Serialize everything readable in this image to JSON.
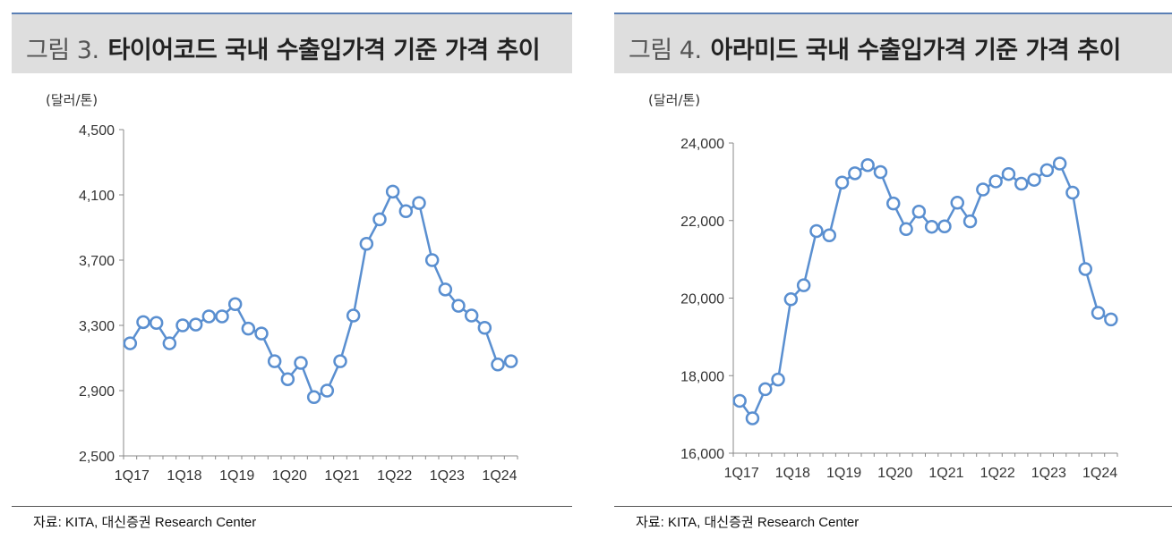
{
  "source_text": "자료: KITA, 대신증권 Research Center",
  "chart_data": [
    {
      "type": "line",
      "figure_label": "그림 3.",
      "title": "타이어코드 국내 수출입가격 기준 가격 추이",
      "unit_label": "(달러/톤)",
      "categories": [
        "1Q17",
        "2Q17",
        "3Q17",
        "4Q17",
        "1Q18",
        "2Q18",
        "3Q18",
        "4Q18",
        "1Q19",
        "2Q19",
        "3Q19",
        "4Q19",
        "1Q20",
        "2Q20",
        "3Q20",
        "4Q20",
        "1Q21",
        "2Q21",
        "3Q21",
        "4Q21",
        "1Q22",
        "2Q22",
        "3Q22",
        "4Q22",
        "1Q23",
        "2Q23",
        "3Q23",
        "4Q23",
        "1Q24",
        "2Q24"
      ],
      "x_tick_labels": [
        "1Q17",
        "1Q18",
        "1Q19",
        "1Q20",
        "1Q21",
        "1Q22",
        "1Q23",
        "1Q24"
      ],
      "series": [
        {
          "values": [
            3190,
            3320,
            3315,
            3190,
            3300,
            3305,
            3355,
            3355,
            3430,
            3280,
            3250,
            3080,
            2970,
            3070,
            2860,
            2900,
            3080,
            3360,
            3800,
            3950,
            4120,
            4000,
            4050,
            3700,
            3520,
            3420,
            3360,
            3285,
            3060,
            3080
          ]
        }
      ],
      "ylim": [
        2500,
        4500
      ],
      "yticks": [
        2500,
        2900,
        3300,
        3700,
        4100,
        4500
      ],
      "ytick_labels": [
        "2,500",
        "2,900",
        "3,300",
        "3,700",
        "4,100",
        "4,500"
      ],
      "grid": true,
      "color": "#5a8fd0"
    },
    {
      "type": "line",
      "figure_label": "그림 4.",
      "title": "아라미드 국내 수출입가격 기준 가격 추이",
      "unit_label": "(달러/톤)",
      "categories": [
        "1Q17",
        "2Q17",
        "3Q17",
        "4Q17",
        "1Q18",
        "2Q18",
        "3Q18",
        "4Q18",
        "1Q19",
        "2Q19",
        "3Q19",
        "4Q19",
        "1Q20",
        "2Q20",
        "3Q20",
        "4Q20",
        "1Q21",
        "2Q21",
        "3Q21",
        "4Q21",
        "1Q22",
        "2Q22",
        "3Q22",
        "4Q22",
        "1Q23",
        "2Q23",
        "3Q23",
        "4Q23",
        "1Q24",
        "2Q24"
      ],
      "x_tick_labels": [
        "1Q17",
        "1Q18",
        "1Q19",
        "1Q20",
        "1Q21",
        "1Q22",
        "1Q23",
        "1Q24"
      ],
      "series": [
        {
          "values": [
            17350,
            16900,
            17650,
            17900,
            19970,
            20330,
            21730,
            21620,
            22980,
            23220,
            23430,
            23250,
            22440,
            21780,
            22230,
            21840,
            21850,
            22460,
            21980,
            22800,
            23010,
            23200,
            22950,
            23050,
            23300,
            23470,
            22720,
            20750,
            19620,
            19450
          ]
        }
      ],
      "ylim": [
        16000,
        24000
      ],
      "yticks": [
        16000,
        18000,
        20000,
        22000,
        24000
      ],
      "ytick_labels": [
        "16,000",
        "18,000",
        "20,000",
        "22,000",
        "24,000"
      ],
      "grid": true,
      "color": "#5a8fd0"
    }
  ]
}
